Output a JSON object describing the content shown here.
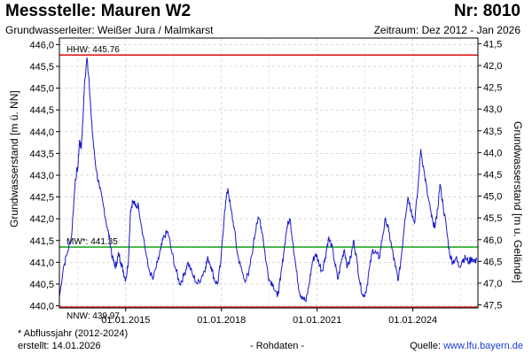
{
  "header": {
    "title": "Messstelle: Mauren W2",
    "number": "Nr: 8010",
    "aquifer": "Grundwasserleiter:  Weißer Jura / Malmkarst",
    "period": "Zeitraum: Dez 2012 - Jan 2026"
  },
  "footer": {
    "footnote": "* Abflussjahr (2012-2024)",
    "created": "erstellt:  14.01.2026",
    "rawdata": "- Rohdaten -",
    "source_label": "Quelle: ",
    "source_url": "www.lfu.bayern.de"
  },
  "chart_data": {
    "type": "line",
    "ylabel": "Grundwasserstand [m ü. NN]",
    "y2label": "Grundwasserstand [m u. Gelände]",
    "ylim": [
      439.95,
      446.15
    ],
    "y_ticks": [
      "440,0",
      "440,5",
      "441,0",
      "441,5",
      "442,0",
      "442,5",
      "443,0",
      "443,5",
      "444,0",
      "444,5",
      "445,0",
      "445,5",
      "446,0"
    ],
    "y2_ticks": [
      "41,5",
      "42,0",
      "42,5",
      "43,0",
      "43,5",
      "44,0",
      "44,5",
      "45,0",
      "45,5",
      "46,0",
      "46,5",
      "47,0",
      "47,5"
    ],
    "x_ticks": [
      "01.01.2015",
      "01.01.2018",
      "01.01.2021",
      "01.01.2024"
    ],
    "x_tick_values": [
      2015.0,
      2018.0,
      2021.0,
      2024.0
    ],
    "xlim": [
      2012.92,
      2026.04
    ],
    "grid": true,
    "reference_lines": [
      {
        "label": "HHW: 445.76",
        "value": 445.76,
        "color": "#e02020"
      },
      {
        "label": "MW*: 441.35",
        "value": 441.35,
        "color": "#13a013"
      },
      {
        "label": "NNW: 439.97",
        "value": 439.97,
        "color": "#e02020"
      }
    ],
    "series": [
      {
        "color": "#1a1acc",
        "x": [
          2012.92,
          2013.05,
          2013.18,
          2013.3,
          2013.42,
          2013.5,
          2013.55,
          2013.6,
          2013.65,
          2013.7,
          2013.78,
          2013.85,
          2013.92,
          2014.0,
          2014.08,
          2014.18,
          2014.3,
          2014.42,
          2014.5,
          2014.58,
          2014.66,
          2014.72,
          2014.78,
          2014.85,
          2014.92,
          2015.0,
          2015.08,
          2015.15,
          2015.22,
          2015.3,
          2015.4,
          2015.55,
          2015.7,
          2015.85,
          2016.0,
          2016.1,
          2016.2,
          2016.32,
          2016.45,
          2016.58,
          2016.7,
          2016.82,
          2016.95,
          2017.1,
          2017.25,
          2017.4,
          2017.5,
          2017.58,
          2017.68,
          2017.78,
          2017.88,
          2017.98,
          2018.1,
          2018.2,
          2018.3,
          2018.4,
          2018.5,
          2018.6,
          2018.72,
          2018.85,
          2019.0,
          2019.1,
          2019.2,
          2019.3,
          2019.4,
          2019.5,
          2019.62,
          2019.75,
          2019.85,
          2019.95,
          2020.05,
          2020.15,
          2020.25,
          2020.35,
          2020.45,
          2020.55,
          2020.65,
          2020.75,
          2020.85,
          2020.95,
          2021.05,
          2021.15,
          2021.25,
          2021.35,
          2021.45,
          2021.55,
          2021.65,
          2021.75,
          2021.85,
          2021.95,
          2022.05,
          2022.15,
          2022.25,
          2022.35,
          2022.45,
          2022.55,
          2022.65,
          2022.75,
          2022.85,
          2022.95,
          2023.05,
          2023.15,
          2023.25,
          2023.35,
          2023.45,
          2023.55,
          2023.65,
          2023.75,
          2023.85,
          2023.95,
          2024.05,
          2024.15,
          2024.25,
          2024.35,
          2024.45,
          2024.55,
          2024.65,
          2024.75,
          2024.85,
          2024.95,
          2025.05,
          2025.15,
          2025.25,
          2025.35,
          2025.45,
          2025.55,
          2025.65,
          2025.75,
          2025.85,
          2025.95,
          2026.0
        ],
        "y": [
          440.2,
          440.9,
          441.25,
          441.6,
          442.9,
          443.2,
          443.8,
          443.6,
          444.2,
          445.0,
          445.7,
          445.2,
          444.3,
          443.6,
          443.1,
          442.7,
          442.3,
          441.8,
          441.5,
          441.1,
          440.9,
          441.0,
          441.2,
          441.0,
          440.8,
          440.6,
          441.0,
          442.2,
          442.4,
          442.3,
          442.3,
          441.6,
          440.9,
          440.6,
          441.0,
          441.3,
          441.6,
          441.7,
          441.2,
          440.8,
          440.5,
          440.7,
          441.0,
          440.7,
          440.5,
          440.7,
          440.9,
          441.1,
          440.9,
          440.6,
          440.5,
          441.0,
          442.2,
          442.7,
          442.2,
          441.8,
          441.2,
          440.9,
          440.6,
          440.7,
          441.4,
          441.9,
          442.0,
          441.6,
          441.0,
          440.6,
          440.5,
          440.2,
          440.6,
          441.2,
          441.8,
          442.0,
          441.4,
          440.8,
          440.3,
          440.2,
          440.1,
          440.5,
          441.0,
          441.2,
          441.0,
          440.8,
          441.1,
          441.55,
          441.4,
          441.0,
          440.6,
          441.0,
          441.3,
          440.9,
          441.1,
          441.5,
          441.0,
          440.5,
          440.2,
          440.4,
          440.9,
          441.3,
          441.2,
          441.1,
          441.6,
          442.0,
          441.7,
          441.3,
          440.9,
          440.6,
          441.2,
          442.0,
          442.5,
          442.2,
          441.9,
          442.6,
          443.6,
          443.1,
          442.6,
          442.2,
          441.8,
          442.0,
          442.8,
          442.3,
          441.8,
          441.2,
          441.0,
          441.1,
          440.9,
          441.05,
          441.1,
          441.0,
          441.1,
          441.0,
          441.1
        ]
      }
    ]
  }
}
